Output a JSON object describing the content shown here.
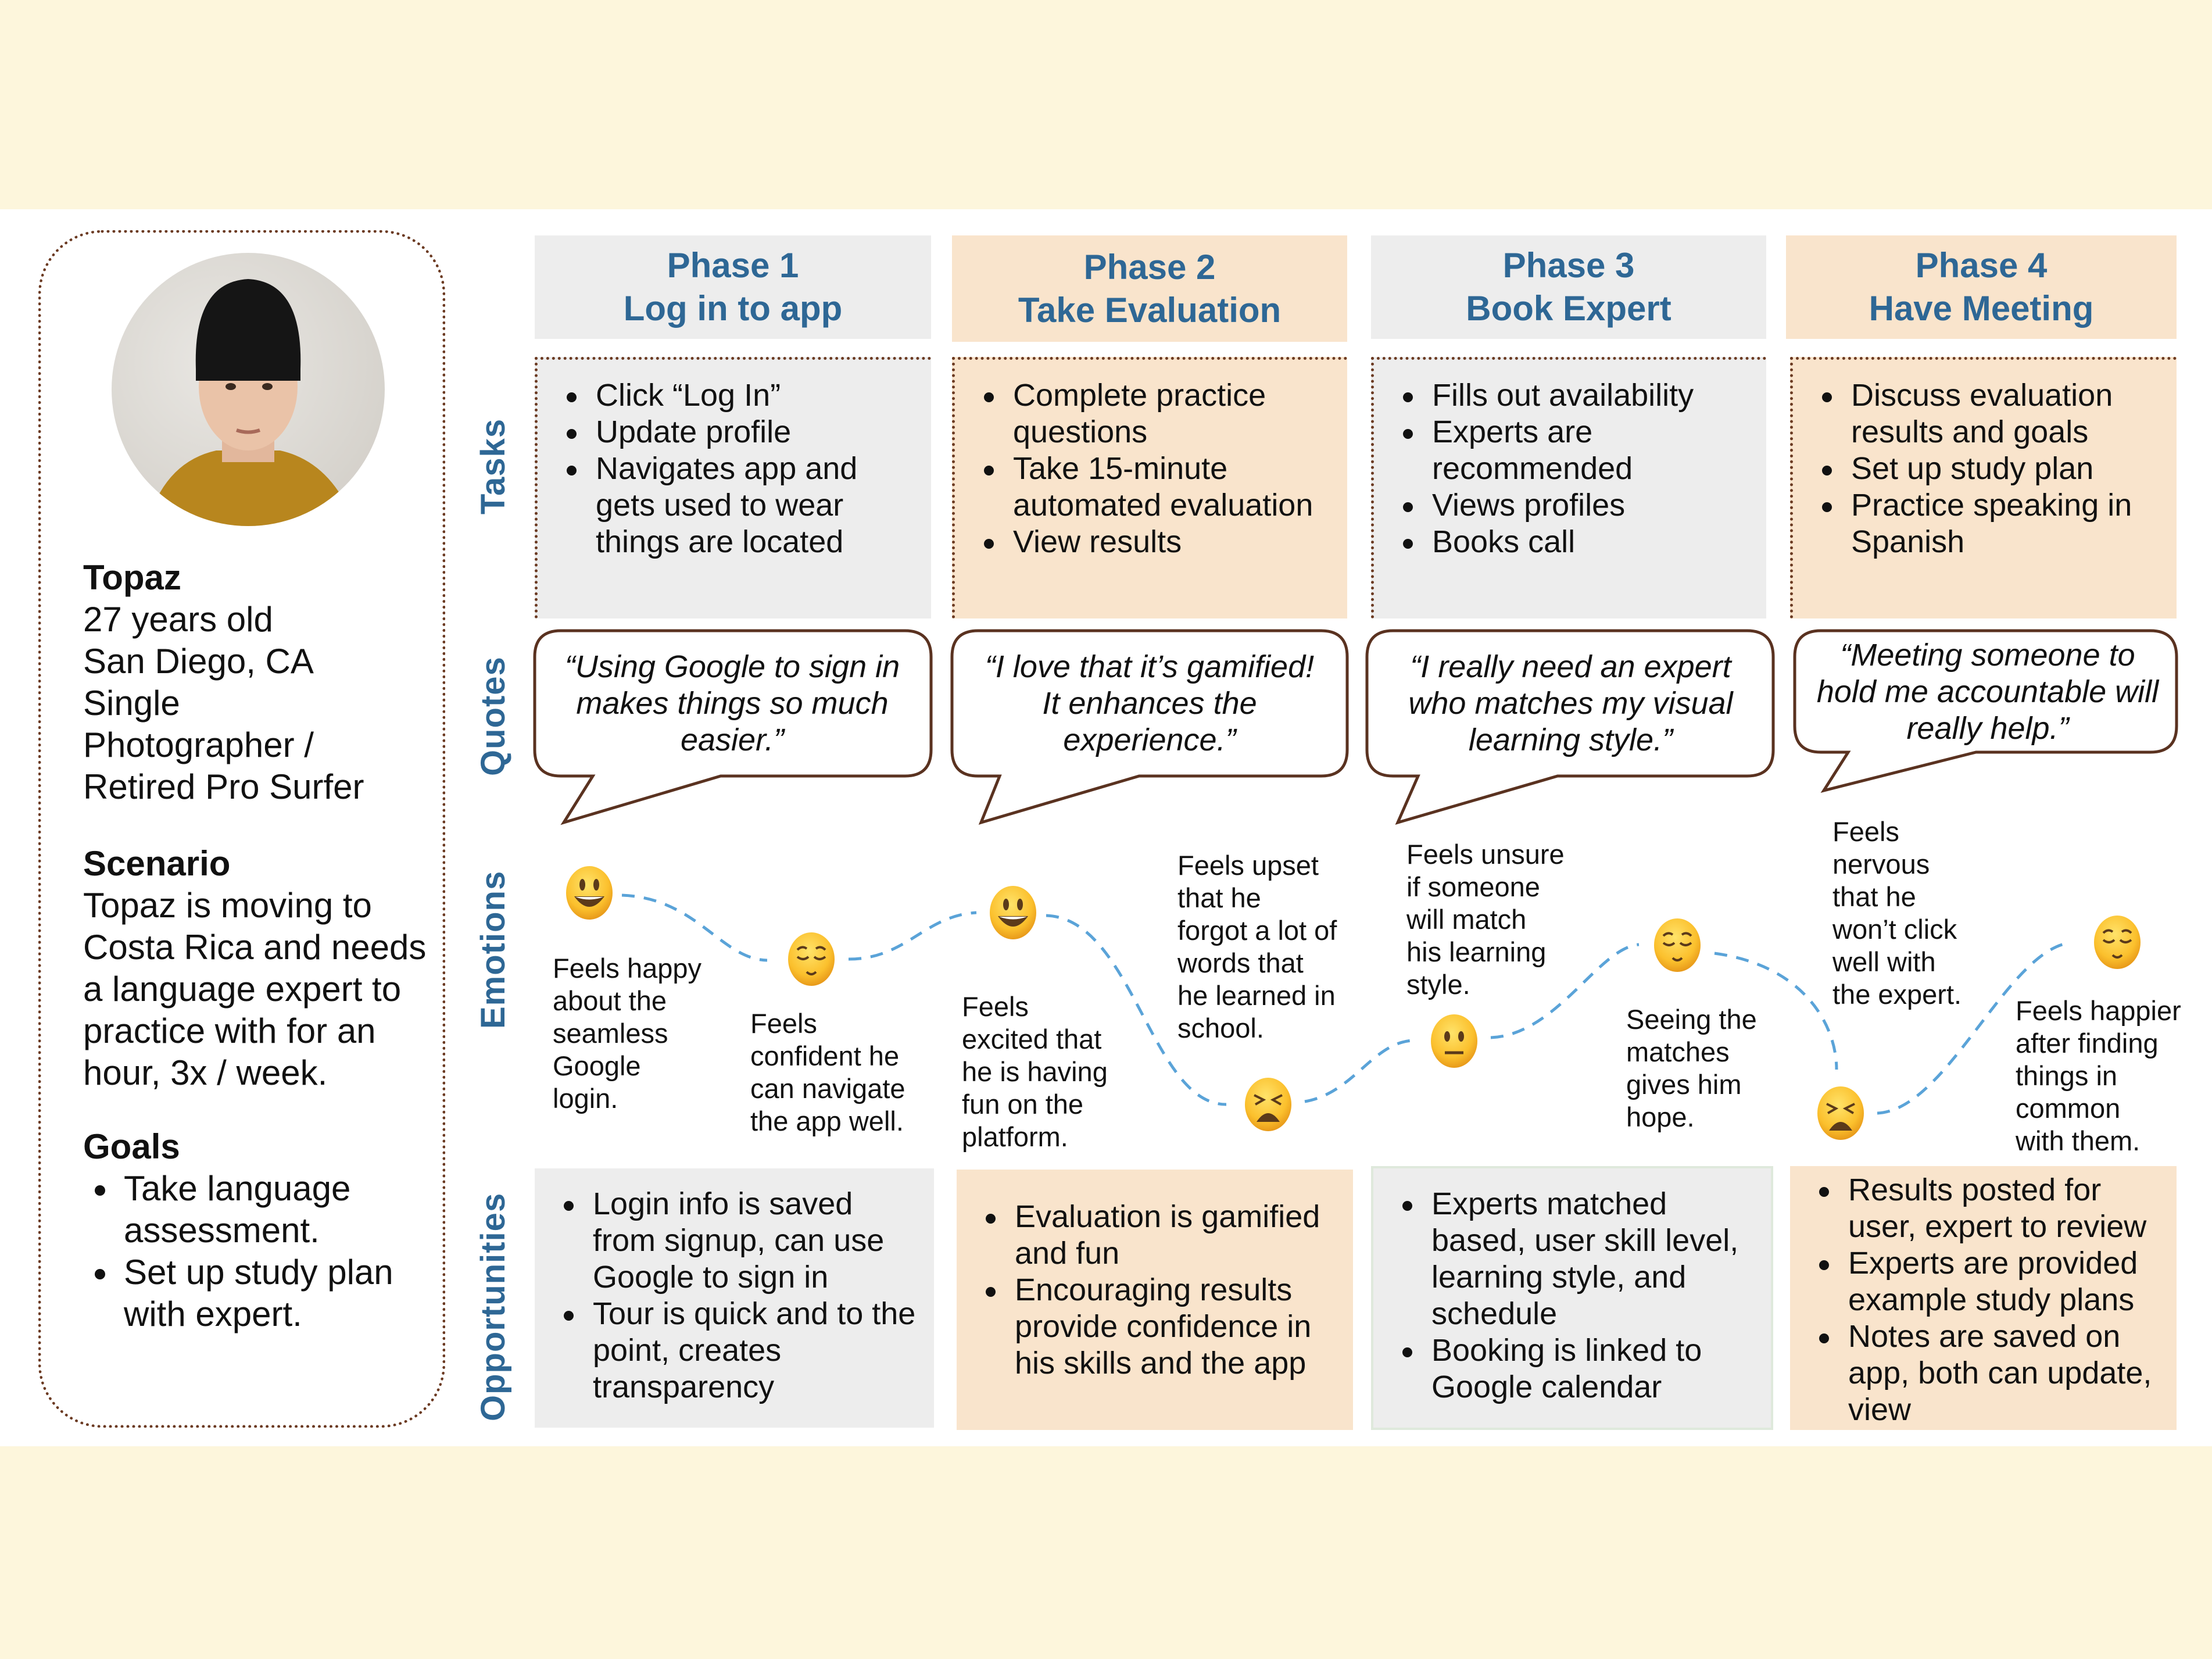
{
  "colors": {
    "band": "#fdf6dc",
    "accent": "#2e6795",
    "grey": "#ededed",
    "peach": "#f9e4cc",
    "bubble_border": "#5a3220",
    "line": "#5aa3d8"
  },
  "persona": {
    "name": "Topaz",
    "details": [
      "27 years old",
      "San Diego, CA",
      "Single",
      "Photographer /",
      "Retired Pro Surfer"
    ],
    "scenario_title": "Scenario",
    "scenario": "Topaz is moving to Costa Rica and needs a language expert to practice with for an hour, 3x / week.",
    "goals_title": "Goals",
    "goals": [
      "Take language assessment.",
      "Set up study plan with expert."
    ]
  },
  "row_labels": {
    "tasks": "Tasks",
    "quotes": "Quotes",
    "emotions": "Emotions",
    "opportunities": "Opportunities"
  },
  "phases": [
    {
      "phase": "Phase 1",
      "title": "Log in to app",
      "tasks": [
        "Click “Log In”",
        "Update profile",
        "Navigates app and gets used to wear things are located"
      ],
      "quote": "“Using Google to sign in makes things so much easier.”",
      "opportunities": [
        "Login info is saved from signup, can use Google to sign in",
        "Tour is quick and to the point, creates transparency"
      ]
    },
    {
      "phase": "Phase 2",
      "title": "Take Evaluation",
      "tasks": [
        "Complete practice questions",
        "Take 15-minute automated evaluation",
        "View results"
      ],
      "quote": "“I love that it’s gamified! It enhances the experience.”",
      "opportunities": [
        "Evaluation is gamified  and fun",
        "Encouraging results provide  confidence in his skills and the app"
      ]
    },
    {
      "phase": "Phase 3",
      "title": "Book Expert",
      "tasks": [
        "Fills out availability",
        "Experts are recommended",
        "Views profiles",
        "Books call"
      ],
      "quote": "“I really need an expert who matches my visual learning style.”",
      "opportunities": [
        "Experts matched based, user skill level, learning style,  and schedule",
        "Booking is linked to Google calendar"
      ]
    },
    {
      "phase": "Phase 4",
      "title": "Have  Meeting",
      "tasks": [
        "Discuss evaluation results and goals",
        "Set up study plan",
        "Practice  speaking in Spanish"
      ],
      "quote": "“Meeting someone to hold me accountable will really  help.”",
      "opportunities": [
        "Results posted for user,  expert to review",
        "Experts are provided example study plans",
        "Notes are saved on app, both can update, view"
      ]
    }
  ],
  "emotions": [
    {
      "face": "grinning",
      "text": "Feels happy\nabout the\nseamless\nGoogle\nlogin."
    },
    {
      "face": "relieved",
      "text": "Feels\nconfident he\ncan navigate\nthe app well."
    },
    {
      "face": "grinning",
      "text": "Feels\nexcited that\nhe is having\nfun on the\nplatform."
    },
    {
      "face": "weary",
      "text": "Feels upset\nthat he\nforgot a lot of\nwords that\nhe learned in\nschool."
    },
    {
      "face": "neutral",
      "text": "Feels unsure\nif someone\nwill match\nhis learning\nstyle."
    },
    {
      "face": "relieved",
      "text": "Seeing the\nmatches\ngives him\nhope."
    },
    {
      "face": "weary",
      "text": "Feels\nnervous\nthat he\nwon’t click\nwell with\nthe expert."
    },
    {
      "face": "relieved",
      "text": "Feels happier\nafter finding\nthings in\ncommon\nwith them."
    }
  ]
}
